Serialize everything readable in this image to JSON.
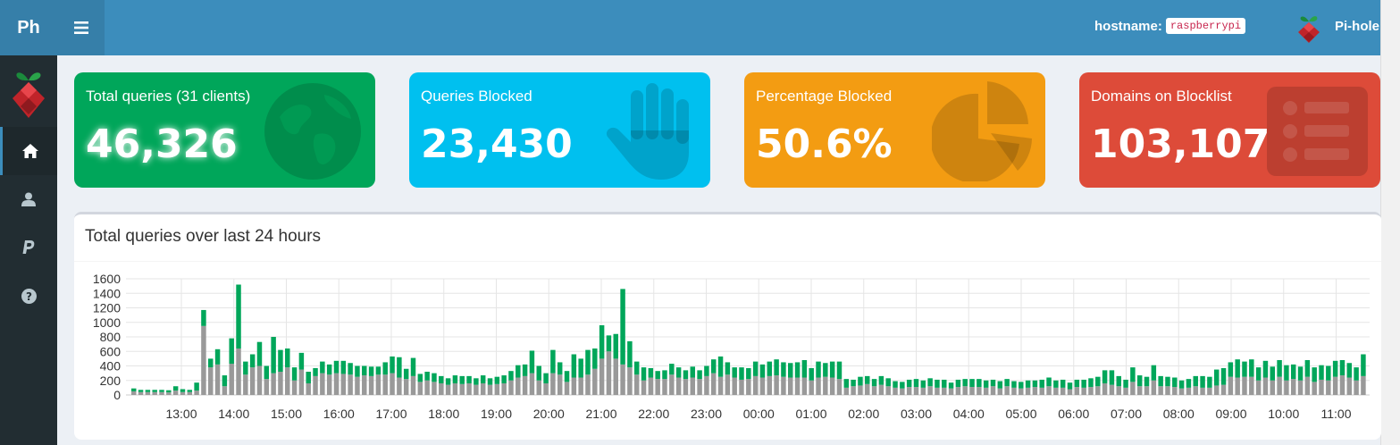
{
  "header": {
    "logo_text": "Ph",
    "menu_icon": "hamburger-icon",
    "hostname_label": "hostname:",
    "hostname_value": "raspberrypi",
    "user_name": "Pi-hole"
  },
  "sidebar": {
    "items": [
      {
        "name": "home",
        "icon": "home-icon",
        "active": true
      },
      {
        "name": "user",
        "icon": "user-icon",
        "active": false
      },
      {
        "name": "paypal",
        "icon": "paypal-icon",
        "active": false
      },
      {
        "name": "help",
        "icon": "help-icon",
        "active": false
      }
    ]
  },
  "stats": [
    {
      "title": "Total queries (31 clients)",
      "value": "46,326",
      "color": "#00a65a",
      "icon": "globe-icon"
    },
    {
      "title": "Queries Blocked",
      "value": "23,430",
      "color": "#00c0ef",
      "icon": "hand-icon"
    },
    {
      "title": "Percentage Blocked",
      "value": "50.6%",
      "color": "#f39c12",
      "icon": "pie-chart-icon"
    },
    {
      "title": "Domains on Blocklist",
      "value": "103,107",
      "color": "#dd4b39",
      "icon": "list-icon"
    }
  ],
  "panel": {
    "title": "Total queries over last 24 hours"
  },
  "chart_data": {
    "type": "bar",
    "stacked": true,
    "ylim": [
      0,
      1600
    ],
    "yticks": [
      0,
      200,
      400,
      600,
      800,
      1000,
      1200,
      1400,
      1600
    ],
    "xticks": [
      "13:00",
      "14:00",
      "15:00",
      "16:00",
      "17:00",
      "18:00",
      "19:00",
      "20:00",
      "21:00",
      "22:00",
      "23:00",
      "00:00",
      "01:00",
      "02:00",
      "03:00",
      "04:00",
      "05:00",
      "06:00",
      "07:00",
      "08:00",
      "09:00",
      "10:00",
      "11:00"
    ],
    "series_colors": {
      "gray": "#999999",
      "green": "#00a65a"
    },
    "series": [
      {
        "color_key": "gray",
        "values": [
          50,
          40,
          40,
          40,
          40,
          35,
          60,
          40,
          40,
          60,
          950,
          380,
          420,
          120,
          430,
          640,
          280,
          380,
          400,
          220,
          300,
          320,
          380,
          200,
          350,
          160,
          260,
          300,
          280,
          300,
          290,
          280,
          250,
          270,
          260,
          280,
          280,
          300,
          240,
          220,
          260,
          180,
          200,
          180,
          160,
          140,
          160,
          150,
          160,
          140,
          160,
          140,
          150,
          160,
          200,
          240,
          260,
          300,
          200,
          160,
          300,
          280,
          180,
          240,
          240,
          280,
          360,
          500,
          600,
          500,
          420,
          380,
          280,
          200,
          240,
          220,
          220,
          280,
          240,
          220,
          240,
          220,
          260,
          300,
          250,
          280,
          240,
          210,
          220,
          260,
          240,
          260,
          270,
          250,
          240,
          240,
          240,
          200,
          240,
          250,
          240,
          220,
          100,
          120,
          130,
          150,
          120,
          140,
          120,
          100,
          90,
          110,
          110,
          100,
          120,
          100,
          100,
          90,
          110,
          120,
          110,
          110,
          100,
          120,
          90,
          120,
          100,
          90,
          100,
          110,
          100,
          120,
          100,
          100,
          80,
          110,
          100,
          110,
          120,
          160,
          140,
          120,
          100,
          180,
          120,
          120,
          200,
          120,
          120,
          110,
          90,
          100,
          120,
          100,
          100,
          130,
          140,
          250,
          240,
          250,
          250,
          200,
          240,
          200,
          250,
          200,
          220,
          200,
          250,
          180,
          210,
          200,
          250,
          270,
          240,
          200,
          260
        ]
      },
      {
        "color_key": "green",
        "values": [
          40,
          30,
          30,
          30,
          30,
          30,
          60,
          40,
          30,
          110,
          220,
          120,
          210,
          150,
          350,
          880,
          180,
          180,
          330,
          180,
          500,
          300,
          260,
          180,
          230,
          160,
          110,
          160,
          140,
          170,
          180,
          160,
          150,
          130,
          130,
          110,
          170,
          230,
          280,
          140,
          250,
          110,
          120,
          120,
          100,
          90,
          110,
          110,
          100,
          90,
          110,
          90,
          100,
          110,
          130,
          170,
          160,
          310,
          200,
          140,
          320,
          170,
          150,
          320,
          260,
          340,
          280,
          460,
          220,
          340,
          1040,
          360,
          180,
          180,
          130,
          110,
          120,
          150,
          140,
          120,
          150,
          120,
          140,
          190,
          280,
          170,
          140,
          170,
          150,
          200,
          180,
          200,
          220,
          200,
          200,
          210,
          240,
          170,
          220,
          190,
          220,
          240,
          120,
          90,
          120,
          110,
          100,
          120,
          110,
          90,
          90,
          100,
          110,
          100,
          110,
          110,
          110,
          80,
          100,
          100,
          110,
          110,
          100,
          90,
          100,
          100,
          90,
          90,
          100,
          90,
          110,
          120,
          100,
          110,
          90,
          100,
          110,
          120,
          130,
          180,
          200,
          140,
          110,
          200,
          150,
          130,
          210,
          140,
          130,
          130,
          110,
          120,
          140,
          160,
          150,
          220,
          230,
          200,
          250,
          210,
          240,
          180,
          230,
          190,
          230,
          210,
          200,
          190,
          230,
          200,
          200,
          200,
          220,
          210,
          200,
          180,
          300
        ]
      }
    ]
  }
}
